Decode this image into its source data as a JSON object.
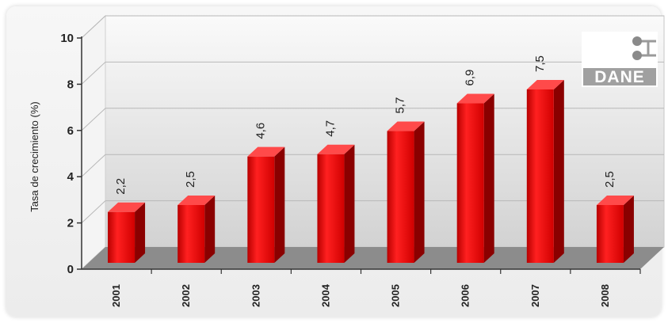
{
  "chart_data": {
    "type": "bar",
    "categories": [
      "2001",
      "2002",
      "2003",
      "2004",
      "2005",
      "2006",
      "2007",
      "2008"
    ],
    "values": [
      2.2,
      2.5,
      4.6,
      4.7,
      5.7,
      6.9,
      7.5,
      2.5
    ],
    "value_labels": [
      "2,2",
      "2,5",
      "4,6",
      "4,7",
      "5,7",
      "6,9",
      "7,5",
      "2,5"
    ],
    "ylabel": "Tasa de crecimiento (%)",
    "xlabel": "",
    "ylim": [
      0,
      10
    ],
    "yticks": [
      0,
      2,
      4,
      6,
      8,
      10
    ],
    "grid": true,
    "bar_color": "#e00000",
    "bar_side_color": "#8a0000",
    "bar_top_color": "#ff4a4a"
  },
  "logo": {
    "text": "DANE",
    "color": "#9a9a9a"
  }
}
